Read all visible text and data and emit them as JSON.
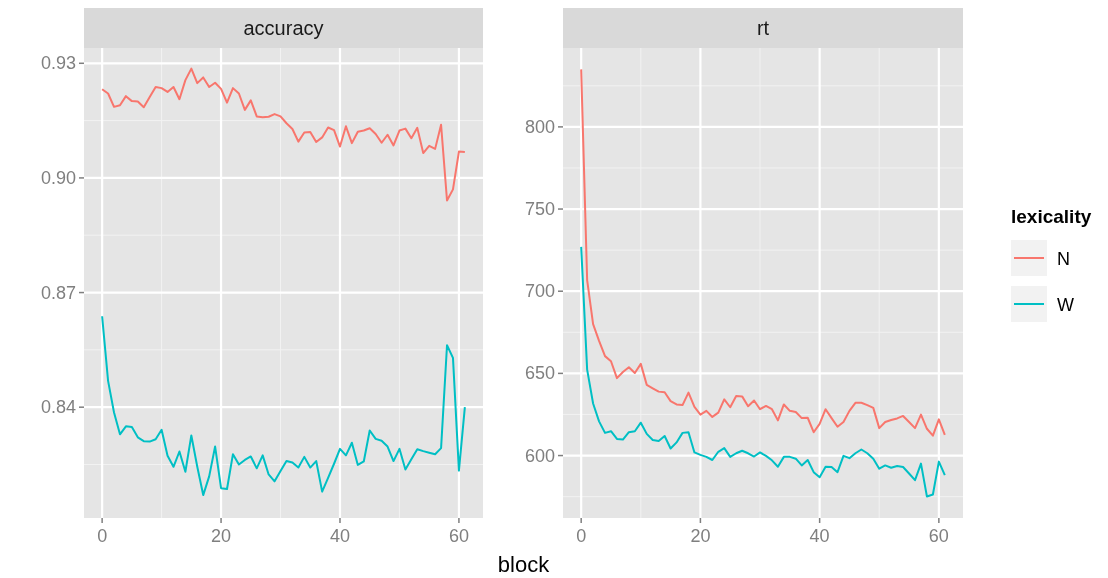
{
  "chart_data": [
    {
      "type": "line",
      "title": "accuracy",
      "xlabel": "block",
      "x": [
        0,
        1,
        2,
        3,
        4,
        5,
        6,
        7,
        8,
        9,
        10,
        11,
        12,
        13,
        14,
        15,
        16,
        17,
        18,
        19,
        20,
        21,
        22,
        23,
        24,
        25,
        26,
        27,
        28,
        29,
        30,
        31,
        32,
        33,
        34,
        35,
        36,
        37,
        38,
        39,
        40,
        41,
        42,
        43,
        44,
        45,
        46,
        47,
        48,
        49,
        50,
        51,
        52,
        53,
        54,
        55,
        56,
        57,
        58,
        59,
        60,
        61
      ],
      "xlim": [
        -3.05,
        64.05
      ],
      "xticks": [
        0,
        20,
        40,
        60
      ],
      "ylim": [
        0.811,
        0.934
      ],
      "yticks": [
        {
          "value": 0.84,
          "label": "0.84"
        },
        {
          "value": 0.87,
          "label": "0.87"
        },
        {
          "value": 0.9,
          "label": "0.90"
        },
        {
          "value": 0.93,
          "label": "0.93"
        }
      ],
      "grid": true,
      "legend": false,
      "series": [
        {
          "color": "#f8766d",
          "values": [
            0.9232,
            0.9221,
            0.9186,
            0.919,
            0.9214,
            0.9201,
            0.92,
            0.9185,
            0.9212,
            0.9238,
            0.9235,
            0.9225,
            0.9238,
            0.9206,
            0.9256,
            0.9286,
            0.9248,
            0.9263,
            0.9238,
            0.9249,
            0.9233,
            0.9197,
            0.9235,
            0.9221,
            0.9178,
            0.9203,
            0.9161,
            0.9159,
            0.916,
            0.9167,
            0.9161,
            0.9143,
            0.9128,
            0.9095,
            0.9119,
            0.912,
            0.9094,
            0.9106,
            0.9132,
            0.9125,
            0.9082,
            0.9135,
            0.9091,
            0.9121,
            0.9124,
            0.913,
            0.9115,
            0.9092,
            0.9113,
            0.9085,
            0.9124,
            0.9129,
            0.9104,
            0.9131,
            0.9065,
            0.9084,
            0.9076,
            0.9139,
            0.8941,
            0.897,
            0.9069,
            0.9068
          ]
        },
        {
          "color": "#00bfc4",
          "values": [
            0.8638,
            0.8469,
            0.8386,
            0.8329,
            0.835,
            0.8348,
            0.8321,
            0.8311,
            0.831,
            0.8316,
            0.8341,
            0.8273,
            0.8244,
            0.8284,
            0.8231,
            0.8326,
            0.8244,
            0.817,
            0.8219,
            0.8297,
            0.8188,
            0.8186,
            0.8277,
            0.825,
            0.8262,
            0.8271,
            0.824,
            0.8274,
            0.8224,
            0.8206,
            0.8233,
            0.8259,
            0.8255,
            0.8242,
            0.827,
            0.8242,
            0.8259,
            0.8179,
            0.8215,
            0.8252,
            0.8291,
            0.8274,
            0.8307,
            0.8249,
            0.8258,
            0.8339,
            0.8317,
            0.8312,
            0.8297,
            0.8259,
            0.8291,
            0.8237,
            0.8264,
            0.829,
            0.8285,
            0.8281,
            0.8277,
            0.8293,
            0.8562,
            0.8529,
            0.8234,
            0.84
          ]
        }
      ]
    },
    {
      "type": "line",
      "title": "rt",
      "x": [
        0,
        1,
        2,
        3,
        4,
        5,
        6,
        7,
        8,
        9,
        10,
        11,
        12,
        13,
        14,
        15,
        16,
        17,
        18,
        19,
        20,
        21,
        22,
        23,
        24,
        25,
        26,
        27,
        28,
        29,
        30,
        31,
        32,
        33,
        34,
        35,
        36,
        37,
        38,
        39,
        40,
        41,
        42,
        43,
        44,
        45,
        46,
        47,
        48,
        49,
        50,
        51,
        52,
        53,
        54,
        55,
        56,
        57,
        58,
        59,
        60,
        61
      ],
      "xlim": [
        -3.05,
        64.05
      ],
      "xticks": [
        0,
        20,
        40,
        60
      ],
      "ylim": [
        562,
        848
      ],
      "yticks": [
        600,
        650,
        700,
        750,
        800
      ],
      "grid": true,
      "legend": "right",
      "legend_title": "lexicality",
      "series": [
        {
          "name": "N",
          "color": "#f8766d",
          "values": [
            835,
            706.8,
            680,
            669.8,
            660.5,
            657.4,
            647.1,
            650.8,
            653.7,
            650.2,
            655.8,
            643,
            640.9,
            638.9,
            638.5,
            633.1,
            631.1,
            630.7,
            638.3,
            629.6,
            624.9,
            627.2,
            623.5,
            626.1,
            634.2,
            629.4,
            636.2,
            636,
            630,
            633.5,
            628.2,
            630.2,
            628.2,
            621.4,
            631.1,
            627.2,
            626.5,
            622.8,
            623,
            614.2,
            619.3,
            628.2,
            622.8,
            617.5,
            620.4,
            627.2,
            632.1,
            632.1,
            630.7,
            629,
            616.7,
            620.4,
            621.6,
            622.6,
            624.1,
            620.4,
            616.7,
            624.9,
            616.3,
            612.1,
            622,
            612.6
          ]
        },
        {
          "name": "W",
          "color": "#00bfc4",
          "values": [
            727,
            652.3,
            631.7,
            620.8,
            613.8,
            614.8,
            610.1,
            609.7,
            614.2,
            614.8,
            620,
            613.2,
            609.5,
            608.8,
            611.9,
            604.3,
            608,
            613.8,
            614.2,
            601.9,
            600.4,
            599.2,
            597.3,
            602.3,
            604.5,
            599.2,
            601.4,
            602.9,
            601.4,
            599.4,
            601.9,
            599.8,
            597.1,
            593.2,
            599.2,
            599.2,
            598.1,
            594,
            597.3,
            589.9,
            586.8,
            593.2,
            593,
            589.9,
            599.8,
            598.4,
            601.4,
            603.7,
            601.4,
            598.1,
            592,
            594,
            592.6,
            593.6,
            593,
            589.1,
            585,
            595.1,
            575.1,
            576.3,
            596.3,
            588.1
          ]
        }
      ]
    }
  ]
}
